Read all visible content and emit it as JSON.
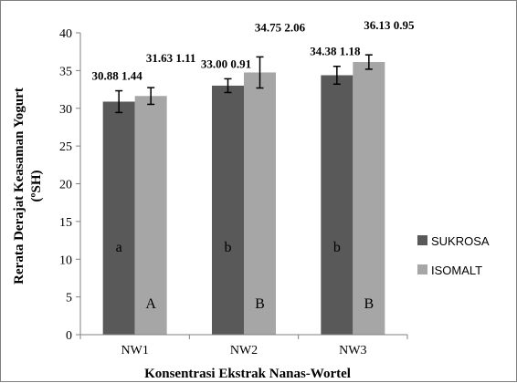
{
  "chart_data": {
    "type": "bar",
    "title": "",
    "xlabel": "Konsentrasi Ekstrak Nanas-Wortel",
    "ylabel_lines": [
      "Rerata Derajat Keasaman Yogurt",
      "(ºSH)"
    ],
    "ylim": [
      0,
      40
    ],
    "yticks": [
      0,
      5,
      10,
      15,
      20,
      25,
      30,
      35,
      40
    ],
    "ytick_labels": [
      "0",
      "5",
      "10",
      "15",
      "20",
      "25",
      "30",
      "35",
      "40"
    ],
    "categories": [
      "NW1",
      "NW2",
      "NW3"
    ],
    "series": [
      {
        "name": "SUKROSA",
        "color": "#595959",
        "values": [
          30.88,
          33.0,
          34.38
        ],
        "errors": [
          1.44,
          0.91,
          1.18
        ],
        "value_labels": [
          "30.88",
          "33.00",
          "34.38"
        ],
        "error_labels": [
          "1.44",
          "0.91",
          "1.18"
        ],
        "sig_letters": [
          "a",
          "b",
          "b"
        ]
      },
      {
        "name": "ISOMALT",
        "color": "#a6a6a6",
        "values": [
          31.63,
          34.75,
          36.13
        ],
        "errors": [
          1.11,
          2.06,
          0.95
        ],
        "value_labels": [
          "31.63",
          "34.75",
          "36.13"
        ],
        "error_labels": [
          "1.11",
          "2.06",
          "0.95"
        ],
        "sig_letters": [
          "A",
          "B",
          "B"
        ]
      }
    ],
    "grid": false,
    "legend": "right"
  }
}
